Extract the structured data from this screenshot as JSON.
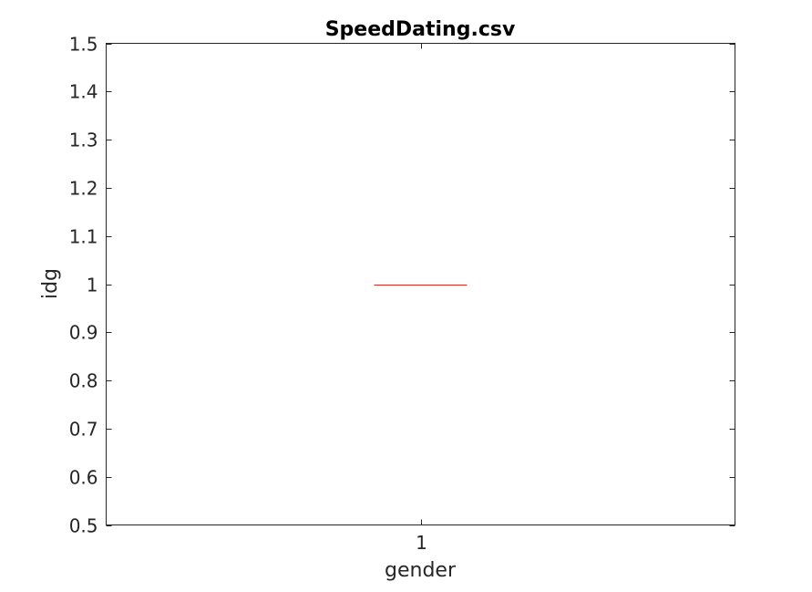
{
  "chart_data": {
    "type": "box",
    "title": "SpeedDating.csv",
    "xlabel": "gender",
    "ylabel": "idg",
    "categories": [
      "1"
    ],
    "ylim": [
      0.5,
      1.5
    ],
    "yticks": [
      "0.5",
      "0.6",
      "0.7",
      "0.8",
      "0.9",
      "1",
      "1.1",
      "1.2",
      "1.3",
      "1.4",
      "1.5"
    ],
    "boxes": [
      {
        "category": "1",
        "min": 1,
        "q1": 1,
        "median": 1,
        "q3": 1,
        "max": 1
      }
    ],
    "grid": false,
    "colors": {
      "median": "#d62a1e",
      "axis": "#262626"
    }
  }
}
